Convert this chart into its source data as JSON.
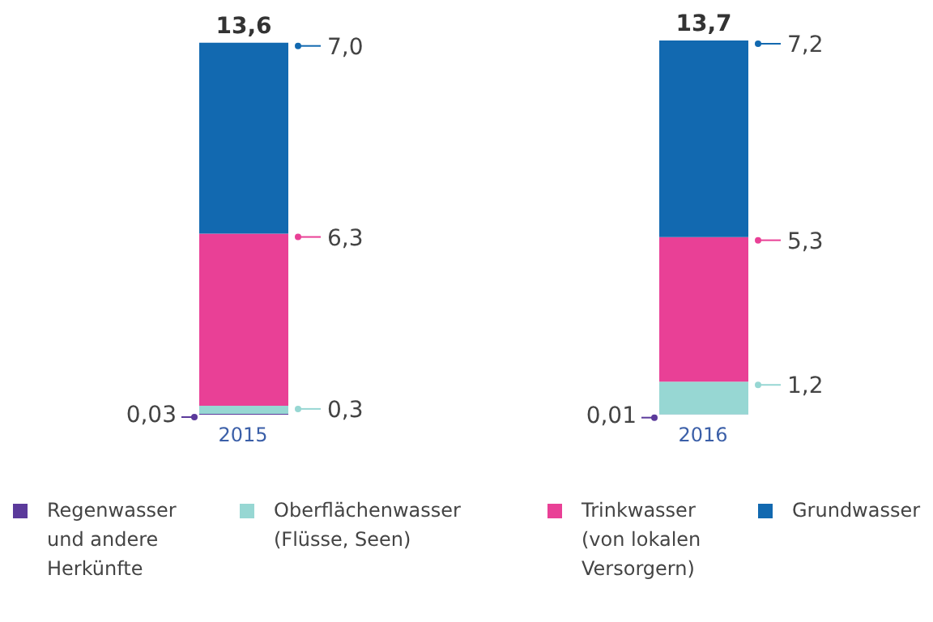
{
  "chart_data": {
    "type": "bar",
    "stacked": true,
    "categories": [
      "2015",
      "2016"
    ],
    "series": [
      {
        "name": "Regenwasser und andere Herkünfte",
        "color": "#5b3a9b",
        "values": [
          0.03,
          0.01
        ],
        "value_labels": [
          "0,03",
          "0,01"
        ]
      },
      {
        "name": "Oberflächenwasser (Flüsse, Seen)",
        "color": "#97d7d3",
        "values": [
          0.3,
          1.2
        ],
        "value_labels": [
          "0,3",
          "1,2"
        ]
      },
      {
        "name": "Trinkwasser (von lokalen Versorgern)",
        "color": "#e94096",
        "values": [
          6.3,
          5.3
        ],
        "value_labels": [
          "6,3",
          "5,3"
        ]
      },
      {
        "name": "Grundwasser",
        "color": "#1269b0",
        "values": [
          7.0,
          7.2
        ],
        "value_labels": [
          "7,0",
          "7,2"
        ]
      }
    ],
    "totals": [
      "13,6",
      "13,7"
    ],
    "legend": "bottom"
  }
}
